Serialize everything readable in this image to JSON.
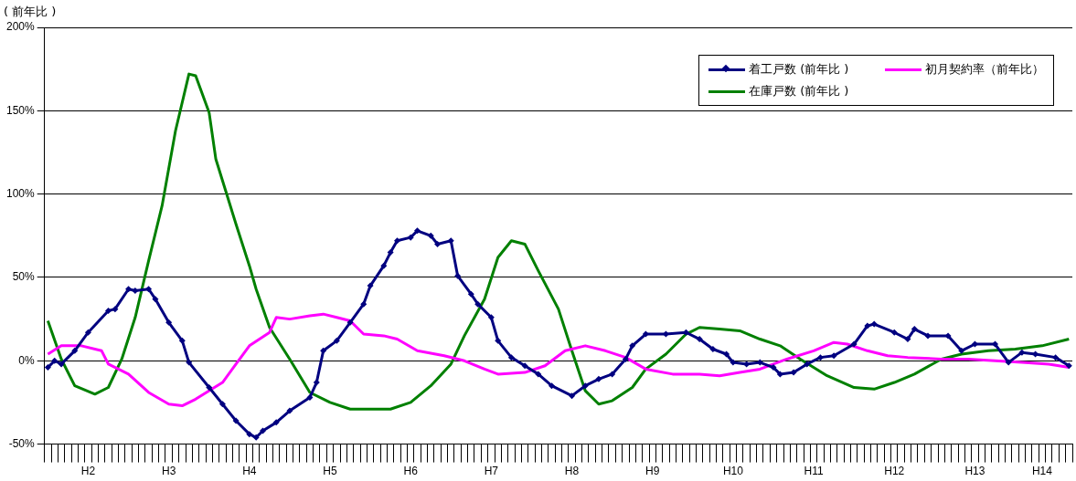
{
  "chart_data": {
    "type": "line",
    "ylabel": "( 前年比 )",
    "legend": "top right",
    "grid": "y",
    "ylim": [
      -50,
      200
    ],
    "yticks": [
      {
        "value": -50,
        "label": "-50%"
      },
      {
        "value": 0,
        "label": "0%"
      },
      {
        "value": 50,
        "label": "50%"
      },
      {
        "value": 100,
        "label": "100%"
      },
      {
        "value": 150,
        "label": "150%"
      },
      {
        "value": 200,
        "label": "200%"
      }
    ],
    "categories": [
      null,
      null,
      null,
      null,
      null,
      null,
      "H2",
      null,
      null,
      null,
      null,
      null,
      null,
      null,
      null,
      null,
      null,
      null,
      "H3",
      null,
      null,
      null,
      null,
      null,
      null,
      null,
      null,
      null,
      null,
      null,
      "H4",
      null,
      null,
      null,
      null,
      null,
      null,
      null,
      null,
      null,
      null,
      null,
      "H5",
      null,
      null,
      null,
      null,
      null,
      null,
      null,
      null,
      null,
      null,
      null,
      "H6",
      null,
      null,
      null,
      null,
      null,
      null,
      null,
      null,
      null,
      null,
      null,
      "H7",
      null,
      null,
      null,
      null,
      null,
      null,
      null,
      null,
      null,
      null,
      null,
      "H8",
      null,
      null,
      null,
      null,
      null,
      null,
      null,
      null,
      null,
      null,
      null,
      "H9",
      null,
      null,
      null,
      null,
      null,
      null,
      null,
      null,
      null,
      null,
      null,
      "H10",
      null,
      null,
      null,
      null,
      null,
      null,
      null,
      null,
      null,
      null,
      null,
      "H11",
      null,
      null,
      null,
      null,
      null,
      null,
      null,
      null,
      null,
      null,
      null,
      "H12",
      null,
      null,
      null,
      null,
      null,
      null,
      null,
      null,
      null,
      null,
      null,
      "H13",
      null,
      null,
      null,
      null,
      null,
      null,
      null,
      null,
      null,
      "H14",
      null,
      null,
      null,
      null
    ],
    "series": [
      {
        "name": "着工戸数 (前年比 )",
        "color": "#000080",
        "marker": "diamond",
        "values": [
          -4,
          0,
          -2,
          null,
          6,
          null,
          17,
          null,
          null,
          30,
          31,
          null,
          43,
          42,
          null,
          43,
          37,
          null,
          23,
          null,
          12,
          -1,
          null,
          null,
          -16,
          null,
          -26,
          null,
          -36,
          null,
          -44,
          -46,
          -42,
          null,
          -37,
          null,
          -30,
          null,
          null,
          -22,
          -13,
          6,
          null,
          12,
          null,
          23,
          null,
          34,
          45,
          null,
          57,
          65,
          72,
          null,
          74,
          78,
          null,
          75,
          70,
          null,
          72,
          51,
          null,
          40,
          34,
          null,
          26,
          12,
          null,
          2,
          null,
          -3,
          null,
          -8,
          null,
          -15,
          null,
          null,
          -21,
          null,
          -15,
          null,
          -11,
          null,
          -8,
          null,
          1,
          9,
          null,
          16,
          null,
          null,
          16,
          null,
          null,
          17,
          null,
          13,
          null,
          7,
          null,
          4,
          -1,
          null,
          -2,
          null,
          -1,
          null,
          -4,
          -8,
          null,
          -7,
          null,
          -2,
          null,
          2,
          null,
          3,
          null,
          null,
          10,
          null,
          21,
          22,
          null,
          null,
          17,
          null,
          13,
          19,
          null,
          15,
          null,
          null,
          15,
          null,
          6,
          null,
          10,
          null,
          null,
          10,
          null,
          -1,
          null,
          5,
          null,
          4,
          null,
          null,
          2,
          null,
          -3
        ]
      },
      {
        "name": "初月契約率（前年比）",
        "color": "#ff00ff",
        "marker": "none",
        "values": [
          4,
          null,
          9,
          null,
          null,
          9,
          null,
          null,
          6,
          -2,
          null,
          null,
          -8,
          null,
          null,
          -19,
          null,
          null,
          -26,
          null,
          -27,
          null,
          -23,
          null,
          null,
          null,
          -13,
          null,
          -2,
          null,
          9,
          null,
          null,
          17,
          26,
          null,
          25,
          null,
          null,
          27,
          null,
          28,
          null,
          26,
          null,
          24,
          null,
          16,
          null,
          null,
          15,
          null,
          13,
          null,
          null,
          6,
          null,
          null,
          null,
          3,
          null,
          null,
          0,
          null,
          null,
          -5,
          null,
          -8,
          null,
          null,
          null,
          -7,
          null,
          null,
          -3,
          null,
          null,
          6,
          null,
          null,
          9,
          null,
          null,
          6,
          null,
          null,
          2,
          null,
          null,
          -5,
          null,
          null,
          null,
          -8,
          null,
          null,
          null,
          -8,
          null,
          null,
          -9,
          null,
          null,
          -7,
          null,
          null,
          -5,
          null,
          null,
          null,
          1,
          null,
          null,
          null,
          6,
          null,
          null,
          11,
          null,
          10,
          null,
          null,
          6,
          null,
          null,
          3,
          null,
          null,
          2,
          null,
          null,
          null,
          null,
          1,
          null,
          null,
          null,
          1,
          null,
          null,
          null,
          0,
          null,
          null,
          null,
          -1,
          null,
          null,
          null,
          -2,
          null,
          null,
          -4
        ]
      },
      {
        "name": "在庫戸数 (前年比 )",
        "color": "#008000",
        "marker": "none",
        "values": [
          24,
          null,
          1,
          null,
          -15,
          null,
          null,
          -20,
          null,
          -16,
          null,
          1,
          null,
          26,
          null,
          60,
          null,
          93,
          null,
          138,
          null,
          172,
          171,
          null,
          149,
          121,
          null,
          null,
          82,
          null,
          57,
          43,
          null,
          20,
          null,
          null,
          1,
          null,
          null,
          -19,
          null,
          null,
          -25,
          null,
          null,
          -29,
          null,
          null,
          null,
          null,
          null,
          -29,
          null,
          null,
          -25,
          null,
          null,
          -15,
          null,
          null,
          -2,
          null,
          15,
          null,
          null,
          37,
          null,
          62,
          null,
          72,
          null,
          70,
          null,
          54,
          null,
          null,
          31,
          null,
          6,
          null,
          -18,
          null,
          -26,
          null,
          -24,
          null,
          null,
          -16,
          null,
          -5,
          null,
          null,
          4,
          null,
          null,
          16,
          null,
          20,
          null,
          null,
          19,
          null,
          null,
          18,
          null,
          null,
          13,
          null,
          null,
          9,
          null,
          null,
          1,
          null,
          null,
          null,
          -9,
          null,
          null,
          null,
          -16,
          null,
          null,
          -17,
          null,
          null,
          -13,
          null,
          null,
          -8,
          null,
          null,
          null,
          1,
          null,
          null,
          4,
          null,
          null,
          null,
          6,
          null,
          null,
          null,
          7,
          null,
          null,
          null,
          9,
          null,
          null,
          null,
          13
        ]
      }
    ]
  }
}
